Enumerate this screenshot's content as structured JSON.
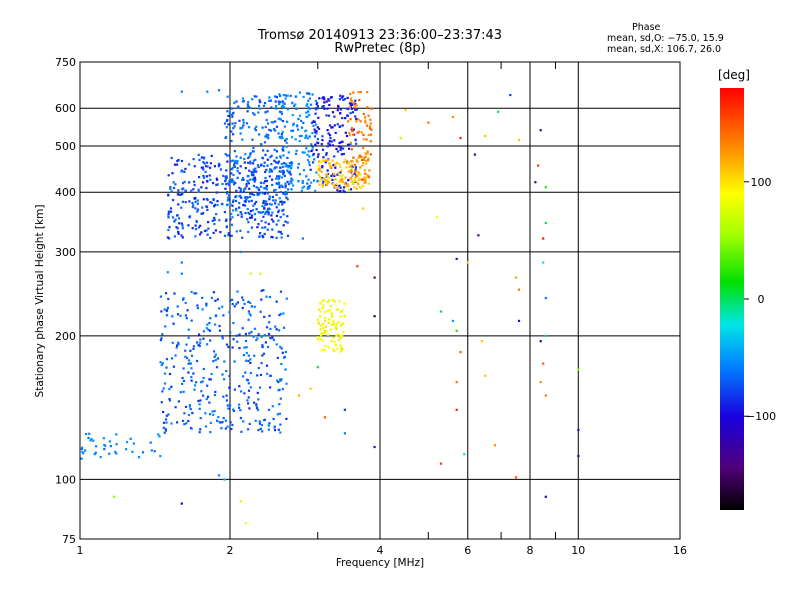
{
  "chart_data": {
    "type": "scatter",
    "title": "Tromsø 20140913 23:36:00–23:37:43",
    "subtitle": "RwPretec (8p)",
    "xlabel": "Frequency [MHz]",
    "ylabel": "Stationary phase Virtual Height [km]",
    "x_scale": "log",
    "y_scale": "log",
    "xlim": [
      1,
      16
    ],
    "ylim": [
      75,
      750
    ],
    "x_ticks": [
      1,
      2,
      4,
      6,
      8,
      10,
      16
    ],
    "y_ticks": [
      75,
      100,
      200,
      300,
      400,
      500,
      600,
      750
    ],
    "grid": true,
    "x_minor": [
      3,
      5,
      7,
      9
    ],
    "colorbar": {
      "label": "[deg]",
      "range": [
        -180,
        180
      ],
      "ticks": [
        100,
        0,
        -100
      ]
    },
    "phase_box": {
      "title": "Phase",
      "line1": "mean, sd,O: −75.0, 15.9",
      "line2": "mean, sd,X: 106.7, 26.0"
    },
    "clusters": [
      {
        "x": [
          1.5,
          2.65
        ],
        "y": [
          320,
          480
        ],
        "phase": [
          -120,
          -90
        ],
        "n": 400
      },
      {
        "x": [
          1.95,
          2.6
        ],
        "y": [
          360,
          640
        ],
        "phase": [
          -110,
          -80
        ],
        "n": 250
      },
      {
        "x": [
          2.5,
          3.0
        ],
        "y": [
          400,
          650
        ],
        "phase": [
          -100,
          -70
        ],
        "n": 150
      },
      {
        "x": [
          2.9,
          3.6
        ],
        "y": [
          400,
          640
        ],
        "phase": [
          -130,
          -105
        ],
        "n": 180
      },
      {
        "x": [
          3.0,
          3.8
        ],
        "y": [
          405,
          470
        ],
        "phase": [
          95,
          125
        ],
        "n": 120
      },
      {
        "x": [
          3.45,
          3.85
        ],
        "y": [
          420,
          650
        ],
        "phase": [
          120,
          150
        ],
        "n": 90
      },
      {
        "x": [
          1.45,
          2.6
        ],
        "y": [
          125,
          250
        ],
        "phase": [
          -115,
          -80
        ],
        "n": 380
      },
      {
        "x": [
          1.0,
          1.45
        ],
        "y": [
          110,
          125
        ],
        "phase": [
          -95,
          -75
        ],
        "n": 40
      },
      {
        "x": [
          3.0,
          3.4
        ],
        "y": [
          185,
          240
        ],
        "phase": [
          70,
          100
        ],
        "n": 90
      }
    ],
    "points": [
      {
        "x": 4.4,
        "y": 520,
        "phase": 60
      },
      {
        "x": 4.5,
        "y": 595,
        "phase": 110
      },
      {
        "x": 5.0,
        "y": 560,
        "phase": 140
      },
      {
        "x": 5.2,
        "y": 355,
        "phase": 90
      },
      {
        "x": 5.6,
        "y": 575,
        "phase": 130
      },
      {
        "x": 5.8,
        "y": 520,
        "phase": 170
      },
      {
        "x": 6.2,
        "y": 480,
        "phase": -150
      },
      {
        "x": 6.5,
        "y": 525,
        "phase": 110
      },
      {
        "x": 6.9,
        "y": 590,
        "phase": -10
      },
      {
        "x": 7.6,
        "y": 515,
        "phase": 110
      },
      {
        "x": 7.3,
        "y": 640,
        "phase": -110
      },
      {
        "x": 8.3,
        "y": 455,
        "phase": 160
      },
      {
        "x": 8.4,
        "y": 540,
        "phase": -140
      },
      {
        "x": 8.2,
        "y": 420,
        "phase": -150
      },
      {
        "x": 8.6,
        "y": 410,
        "phase": 10
      },
      {
        "x": 8.6,
        "y": 345,
        "phase": -10
      },
      {
        "x": 8.5,
        "y": 320,
        "phase": 175
      },
      {
        "x": 6.3,
        "y": 325,
        "phase": -150
      },
      {
        "x": 3.7,
        "y": 370,
        "phase": 110
      },
      {
        "x": 2.8,
        "y": 320,
        "phase": -90
      },
      {
        "x": 4.0,
        "y": 300,
        "phase": -150
      },
      {
        "x": 3.6,
        "y": 280,
        "phase": 160
      },
      {
        "x": 3.9,
        "y": 265,
        "phase": -160
      },
      {
        "x": 5.7,
        "y": 290,
        "phase": -120
      },
      {
        "x": 6.0,
        "y": 285,
        "phase": 100
      },
      {
        "x": 7.5,
        "y": 265,
        "phase": 120
      },
      {
        "x": 7.6,
        "y": 250,
        "phase": 140
      },
      {
        "x": 8.5,
        "y": 285,
        "phase": -30
      },
      {
        "x": 8.6,
        "y": 240,
        "phase": -90
      },
      {
        "x": 3.9,
        "y": 220,
        "phase": -170
      },
      {
        "x": 5.3,
        "y": 225,
        "phase": -10
      },
      {
        "x": 5.6,
        "y": 215,
        "phase": -70
      },
      {
        "x": 5.7,
        "y": 205,
        "phase": 10
      },
      {
        "x": 5.8,
        "y": 185,
        "phase": 150
      },
      {
        "x": 6.4,
        "y": 195,
        "phase": 110
      },
      {
        "x": 7.6,
        "y": 215,
        "phase": -120
      },
      {
        "x": 8.4,
        "y": 195,
        "phase": -140
      },
      {
        "x": 8.6,
        "y": 200,
        "phase": -20
      },
      {
        "x": 8.5,
        "y": 175,
        "phase": 150
      },
      {
        "x": 10.0,
        "y": 170,
        "phase": 40
      },
      {
        "x": 5.7,
        "y": 160,
        "phase": 140
      },
      {
        "x": 6.5,
        "y": 165,
        "phase": 110
      },
      {
        "x": 8.4,
        "y": 160,
        "phase": 130
      },
      {
        "x": 8.6,
        "y": 150,
        "phase": 140
      },
      {
        "x": 5.7,
        "y": 140,
        "phase": 170
      },
      {
        "x": 3.4,
        "y": 140,
        "phase": -110
      },
      {
        "x": 3.1,
        "y": 135,
        "phase": 150
      },
      {
        "x": 3.4,
        "y": 125,
        "phase": -90
      },
      {
        "x": 3.9,
        "y": 117,
        "phase": -120
      },
      {
        "x": 5.9,
        "y": 113,
        "phase": -30
      },
      {
        "x": 6.8,
        "y": 118,
        "phase": 130
      },
      {
        "x": 10.0,
        "y": 127,
        "phase": -120
      },
      {
        "x": 10.0,
        "y": 112,
        "phase": -140
      },
      {
        "x": 5.3,
        "y": 108,
        "phase": 160
      },
      {
        "x": 7.5,
        "y": 101,
        "phase": 150
      },
      {
        "x": 8.6,
        "y": 92,
        "phase": -140
      },
      {
        "x": 1.17,
        "y": 92,
        "phase": 40
      },
      {
        "x": 1.6,
        "y": 89,
        "phase": -130
      },
      {
        "x": 1.9,
        "y": 102,
        "phase": -80
      },
      {
        "x": 1.95,
        "y": 100,
        "phase": -60
      },
      {
        "x": 2.1,
        "y": 90,
        "phase": 100
      },
      {
        "x": 2.15,
        "y": 81,
        "phase": 80
      },
      {
        "x": 1.5,
        "y": 272,
        "phase": -80
      },
      {
        "x": 1.6,
        "y": 285,
        "phase": -90
      },
      {
        "x": 1.6,
        "y": 270,
        "phase": -85
      },
      {
        "x": 2.1,
        "y": 300,
        "phase": -80
      },
      {
        "x": 1.6,
        "y": 650,
        "phase": -90
      },
      {
        "x": 1.8,
        "y": 650,
        "phase": -85
      },
      {
        "x": 1.9,
        "y": 655,
        "phase": -90
      },
      {
        "x": 2.9,
        "y": 155,
        "phase": 110
      },
      {
        "x": 2.75,
        "y": 150,
        "phase": 120
      },
      {
        "x": 3.0,
        "y": 172,
        "phase": -10
      },
      {
        "x": 2.2,
        "y": 270,
        "phase": 60
      },
      {
        "x": 2.3,
        "y": 270,
        "phase": 70
      }
    ]
  }
}
